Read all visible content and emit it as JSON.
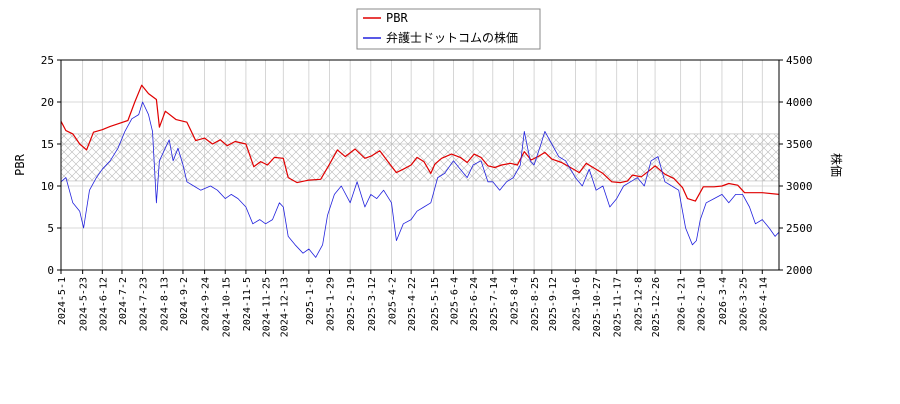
{
  "chart_data": {
    "type": "line",
    "legend": {
      "placement": "top-center",
      "entries": [
        {
          "label": "PBR",
          "color": "#e00000"
        },
        {
          "label": "弁護士ドットコムの株価",
          "color": "#2222dd"
        }
      ]
    },
    "ylabel_left": "PBR",
    "ylabel_right": "株価",
    "ylim_left": [
      0,
      25
    ],
    "ylim_right": [
      2000,
      4500
    ],
    "yticks_left": [
      "0",
      "5",
      "10",
      "15",
      "20",
      "25"
    ],
    "yticks_right": [
      "2000",
      "2500",
      "3000",
      "3500",
      "4000",
      "4500"
    ],
    "x_range": [
      "2024-05-01",
      "2026-05-01"
    ],
    "xticks": [
      "2024-5-1",
      "2024-5-23",
      "2024-6-12",
      "2024-7-2",
      "2024-7-23",
      "2024-8-13",
      "2024-9-2",
      "2024-9-24",
      "2024-10-15",
      "2024-11-5",
      "2024-11-25",
      "2024-12-13",
      "2025-1-8",
      "2025-1-29",
      "2025-2-19",
      "2025-3-12",
      "2025-4-2",
      "2025-4-22",
      "2025-5-15",
      "2025-6-4",
      "2025-6-24",
      "2025-7-14",
      "2025-8-4",
      "2025-8-25",
      "2025-9-12",
      "2025-10-6",
      "2025-10-27",
      "2025-11-17",
      "2025-12-8",
      "2025-12-26",
      "2026-1-21",
      "2026-2-10",
      "2026-3-4",
      "2026-3-25",
      "2026-4-14"
    ],
    "grid": true,
    "hatch_band": {
      "axis": "left",
      "from": 10.6,
      "to": 16.2
    },
    "series": [
      {
        "name": "PBR",
        "axis": "left",
        "color": "#e00000",
        "points": [
          [
            "2024-05-01",
            17.7
          ],
          [
            "2024-05-06",
            16.6
          ],
          [
            "2024-05-13",
            16.2
          ],
          [
            "2024-05-20",
            15.0
          ],
          [
            "2024-05-27",
            14.3
          ],
          [
            "2024-06-03",
            16.4
          ],
          [
            "2024-06-12",
            16.7
          ],
          [
            "2024-06-20",
            17.1
          ],
          [
            "2024-06-28",
            17.4
          ],
          [
            "2024-07-08",
            17.8
          ],
          [
            "2024-07-15",
            20.0
          ],
          [
            "2024-07-22",
            22.0
          ],
          [
            "2024-07-29",
            21.0
          ],
          [
            "2024-08-06",
            20.3
          ],
          [
            "2024-08-09",
            17.0
          ],
          [
            "2024-08-15",
            18.9
          ],
          [
            "2024-08-26",
            17.9
          ],
          [
            "2024-09-06",
            17.6
          ],
          [
            "2024-09-15",
            15.4
          ],
          [
            "2024-09-24",
            15.7
          ],
          [
            "2024-10-02",
            15.0
          ],
          [
            "2024-10-10",
            15.5
          ],
          [
            "2024-10-17",
            14.8
          ],
          [
            "2024-10-25",
            15.3
          ],
          [
            "2024-11-05",
            15.0
          ],
          [
            "2024-11-13",
            12.3
          ],
          [
            "2024-11-20",
            12.9
          ],
          [
            "2024-11-27",
            12.5
          ],
          [
            "2024-12-04",
            13.4
          ],
          [
            "2024-12-13",
            13.3
          ],
          [
            "2024-12-18",
            11.0
          ],
          [
            "2024-12-27",
            10.4
          ],
          [
            "2025-01-08",
            10.7
          ],
          [
            "2025-01-20",
            10.8
          ],
          [
            "2025-01-29",
            12.6
          ],
          [
            "2025-02-06",
            14.3
          ],
          [
            "2025-02-14",
            13.5
          ],
          [
            "2025-02-24",
            14.4
          ],
          [
            "2025-03-06",
            13.3
          ],
          [
            "2025-03-13",
            13.6
          ],
          [
            "2025-03-21",
            14.2
          ],
          [
            "2025-04-01",
            12.5
          ],
          [
            "2025-04-07",
            11.6
          ],
          [
            "2025-04-14",
            12.0
          ],
          [
            "2025-04-22",
            12.5
          ],
          [
            "2025-04-28",
            13.4
          ],
          [
            "2025-05-05",
            12.9
          ],
          [
            "2025-05-12",
            11.5
          ],
          [
            "2025-05-16",
            12.6
          ],
          [
            "2025-05-23",
            13.3
          ],
          [
            "2025-06-02",
            13.8
          ],
          [
            "2025-06-11",
            13.4
          ],
          [
            "2025-06-18",
            12.8
          ],
          [
            "2025-06-25",
            13.8
          ],
          [
            "2025-07-02",
            13.4
          ],
          [
            "2025-07-09",
            12.4
          ],
          [
            "2025-07-16",
            12.2
          ],
          [
            "2025-07-23",
            12.5
          ],
          [
            "2025-08-01",
            12.7
          ],
          [
            "2025-08-08",
            12.5
          ],
          [
            "2025-08-15",
            14.1
          ],
          [
            "2025-08-22",
            13.1
          ],
          [
            "2025-08-29",
            13.5
          ],
          [
            "2025-09-05",
            14.0
          ],
          [
            "2025-09-12",
            13.2
          ],
          [
            "2025-09-22",
            12.8
          ],
          [
            "2025-10-01",
            12.2
          ],
          [
            "2025-10-10",
            11.6
          ],
          [
            "2025-10-17",
            12.7
          ],
          [
            "2025-10-24",
            12.2
          ],
          [
            "2025-11-03",
            11.5
          ],
          [
            "2025-11-12",
            10.5
          ],
          [
            "2025-11-21",
            10.4
          ],
          [
            "2025-11-28",
            10.6
          ],
          [
            "2025-12-03",
            11.3
          ],
          [
            "2025-12-12",
            11.1
          ],
          [
            "2025-12-22",
            12.0
          ],
          [
            "2025-12-26",
            12.4
          ],
          [
            "2026-01-05",
            11.4
          ],
          [
            "2026-01-14",
            10.9
          ],
          [
            "2026-01-23",
            9.8
          ],
          [
            "2026-01-28",
            8.5
          ],
          [
            "2026-02-05",
            8.2
          ],
          [
            "2026-02-13",
            9.9
          ],
          [
            "2026-02-24",
            9.9
          ],
          [
            "2026-03-04",
            10.0
          ],
          [
            "2026-03-11",
            10.3
          ],
          [
            "2026-03-20",
            10.1
          ],
          [
            "2026-03-27",
            9.2
          ],
          [
            "2026-04-14",
            9.2
          ],
          [
            "2026-05-01",
            9.0
          ]
        ]
      },
      {
        "name": "弁護士ドットコムの株価",
        "axis": "right",
        "color": "#2222dd",
        "points": [
          [
            "2024-05-01",
            3050
          ],
          [
            "2024-05-06",
            3100
          ],
          [
            "2024-05-13",
            2800
          ],
          [
            "2024-05-20",
            2700
          ],
          [
            "2024-05-24",
            2500
          ],
          [
            "2024-05-30",
            2950
          ],
          [
            "2024-06-06",
            3100
          ],
          [
            "2024-06-12",
            3200
          ],
          [
            "2024-06-20",
            3300
          ],
          [
            "2024-06-28",
            3450
          ],
          [
            "2024-07-05",
            3650
          ],
          [
            "2024-07-12",
            3800
          ],
          [
            "2024-07-19",
            3850
          ],
          [
            "2024-07-23",
            4000
          ],
          [
            "2024-07-29",
            3850
          ],
          [
            "2024-08-02",
            3650
          ],
          [
            "2024-08-06",
            2800
          ],
          [
            "2024-08-09",
            3300
          ],
          [
            "2024-08-13",
            3400
          ],
          [
            "2024-08-19",
            3550
          ],
          [
            "2024-08-23",
            3300
          ],
          [
            "2024-08-28",
            3450
          ],
          [
            "2024-09-02",
            3250
          ],
          [
            "2024-09-06",
            3050
          ],
          [
            "2024-09-13",
            3000
          ],
          [
            "2024-09-20",
            2950
          ],
          [
            "2024-09-30",
            3000
          ],
          [
            "2024-10-07",
            2950
          ],
          [
            "2024-10-15",
            2850
          ],
          [
            "2024-10-21",
            2900
          ],
          [
            "2024-10-28",
            2850
          ],
          [
            "2024-11-05",
            2750
          ],
          [
            "2024-11-12",
            2550
          ],
          [
            "2024-11-19",
            2600
          ],
          [
            "2024-11-25",
            2550
          ],
          [
            "2024-12-02",
            2600
          ],
          [
            "2024-12-09",
            2800
          ],
          [
            "2024-12-13",
            2750
          ],
          [
            "2024-12-18",
            2400
          ],
          [
            "2024-12-25",
            2300
          ],
          [
            "2025-01-02",
            2200
          ],
          [
            "2025-01-08",
            2250
          ],
          [
            "2025-01-15",
            2150
          ],
          [
            "2025-01-22",
            2300
          ],
          [
            "2025-01-27",
            2650
          ],
          [
            "2025-02-03",
            2900
          ],
          [
            "2025-02-10",
            3000
          ],
          [
            "2025-02-19",
            2800
          ],
          [
            "2025-02-26",
            3050
          ],
          [
            "2025-03-06",
            2750
          ],
          [
            "2025-03-12",
            2900
          ],
          [
            "2025-03-18",
            2850
          ],
          [
            "2025-03-25",
            2950
          ],
          [
            "2025-04-02",
            2800
          ],
          [
            "2025-04-07",
            2350
          ],
          [
            "2025-04-14",
            2550
          ],
          [
            "2025-04-22",
            2600
          ],
          [
            "2025-04-28",
            2700
          ],
          [
            "2025-05-05",
            2750
          ],
          [
            "2025-05-12",
            2800
          ],
          [
            "2025-05-19",
            3100
          ],
          [
            "2025-05-26",
            3150
          ],
          [
            "2025-06-04",
            3300
          ],
          [
            "2025-06-11",
            3200
          ],
          [
            "2025-06-18",
            3100
          ],
          [
            "2025-06-24",
            3250
          ],
          [
            "2025-07-02",
            3300
          ],
          [
            "2025-07-09",
            3050
          ],
          [
            "2025-07-14",
            3050
          ],
          [
            "2025-07-21",
            2950
          ],
          [
            "2025-07-28",
            3050
          ],
          [
            "2025-08-04",
            3100
          ],
          [
            "2025-08-11",
            3250
          ],
          [
            "2025-08-15",
            3650
          ],
          [
            "2025-08-21",
            3300
          ],
          [
            "2025-08-25",
            3250
          ],
          [
            "2025-09-01",
            3500
          ],
          [
            "2025-09-05",
            3650
          ],
          [
            "2025-09-12",
            3500
          ],
          [
            "2025-09-19",
            3350
          ],
          [
            "2025-09-26",
            3300
          ],
          [
            "2025-10-01",
            3200
          ],
          [
            "2025-10-06",
            3100
          ],
          [
            "2025-10-13",
            3000
          ],
          [
            "2025-10-20",
            3200
          ],
          [
            "2025-10-27",
            2950
          ],
          [
            "2025-11-03",
            3000
          ],
          [
            "2025-11-10",
            2750
          ],
          [
            "2025-11-17",
            2850
          ],
          [
            "2025-11-24",
            3000
          ],
          [
            "2025-12-01",
            3050
          ],
          [
            "2025-12-08",
            3100
          ],
          [
            "2025-12-15",
            3000
          ],
          [
            "2025-12-22",
            3300
          ],
          [
            "2025-12-29",
            3350
          ],
          [
            "2026-01-05",
            3050
          ],
          [
            "2026-01-12",
            3000
          ],
          [
            "2026-01-19",
            2950
          ],
          [
            "2026-01-26",
            2500
          ],
          [
            "2026-02-02",
            2300
          ],
          [
            "2026-02-06",
            2350
          ],
          [
            "2026-02-10",
            2600
          ],
          [
            "2026-02-16",
            2800
          ],
          [
            "2026-02-24",
            2850
          ],
          [
            "2026-03-04",
            2900
          ],
          [
            "2026-03-11",
            2800
          ],
          [
            "2026-03-18",
            2900
          ],
          [
            "2026-03-25",
            2900
          ],
          [
            "2026-04-01",
            2750
          ],
          [
            "2026-04-07",
            2550
          ],
          [
            "2026-04-14",
            2600
          ],
          [
            "2026-04-21",
            2500
          ],
          [
            "2026-04-27",
            2400
          ],
          [
            "2026-05-01",
            2450
          ]
        ]
      }
    ]
  }
}
